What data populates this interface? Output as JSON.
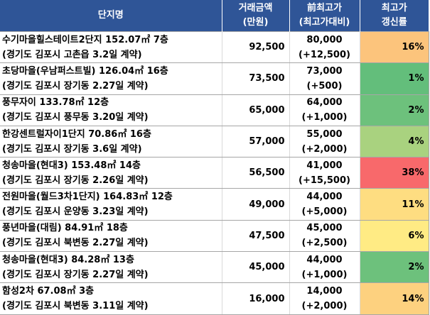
{
  "headers": {
    "name": "단지명",
    "price_line1": "거래금액",
    "price_line2": "(만원)",
    "high_line1": "前최고가",
    "high_line2": "(최고가대비)",
    "rate_line1": "최고가",
    "rate_line2": "갱신률"
  },
  "rows": [
    {
      "complex": "수기마을힐스테이트2단지 152.07㎡ 7층",
      "location": "(경기도 김포시 고촌읍 3.2일 계약)",
      "price": "92,500",
      "prev_high": "80,000",
      "diff": "(+12,500)",
      "rate": "16%",
      "color": "#fcc47c"
    },
    {
      "complex": "초당마을(우남퍼스트빌) 126.04㎡ 16층",
      "location": "(경기도 김포시 장기동 2.27일 계약)",
      "price": "73,500",
      "prev_high": "73,000",
      "diff": "(+500)",
      "rate": "1%",
      "color": "#63be7b"
    },
    {
      "complex": "풍무자이 133.78㎡ 12층",
      "location": "(경기도 김포시 풍무동 3.20일 계약)",
      "price": "65,000",
      "prev_high": "64,000",
      "diff": "(+1,000)",
      "rate": "2%",
      "color": "#6dc17c"
    },
    {
      "complex": "한강센트럴자이1단지 70.86㎡ 16층",
      "location": "(경기도 김포시 장기동 3.6일 계약)",
      "price": "57,000",
      "prev_high": "55,000",
      "diff": "(+2,000)",
      "rate": "4%",
      "color": "#a9d27f"
    },
    {
      "complex": "청송마을(현대3) 153.48㎡ 14층",
      "location": "(경기도 김포시 장기동 2.26일 계약)",
      "price": "56,500",
      "prev_high": "41,000",
      "diff": "(+15,500)",
      "rate": "38%",
      "color": "#f8696b"
    },
    {
      "complex": "전원마을(월드3차1단지) 164.83㎡ 12층",
      "location": "(경기도 김포시 운양동 3.23일 계약)",
      "price": "49,000",
      "prev_high": "44,000",
      "diff": "(+5,000)",
      "rate": "11%",
      "color": "#fedd81"
    },
    {
      "complex": "풍년마을(대림) 84.91㎡ 18층",
      "location": "(경기도 김포시 북변동 2.27일 계약)",
      "price": "47,500",
      "prev_high": "45,000",
      "diff": "(+2,500)",
      "rate": "6%",
      "color": "#ffeb84"
    },
    {
      "complex": "청송마을(현대3) 84.28㎡ 13층",
      "location": "(경기도 김포시 장기동 2.27일 계약)",
      "price": "45,000",
      "prev_high": "44,000",
      "diff": "(+1,000)",
      "rate": "2%",
      "color": "#6dc17c"
    },
    {
      "complex": "함성2차 67.08㎡ 3층",
      "location": "(경기도 김포시 북변동 3.11일 계약)",
      "price": "16,000",
      "prev_high": "14,000",
      "diff": "(+2,000)",
      "rate": "14%",
      "color": "#fdd17f"
    }
  ]
}
